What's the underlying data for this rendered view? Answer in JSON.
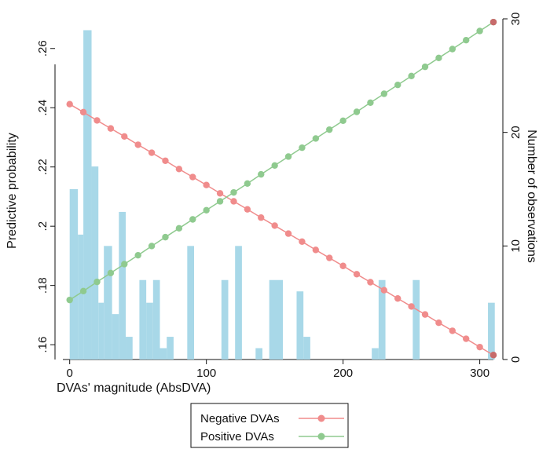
{
  "chart_data": {
    "type": "line",
    "title": "",
    "xlabel": "DVAs' magnitude (AbsDVA)",
    "ylabel": "Predictive probability",
    "y2label": "Number of observations",
    "xlim": [
      -5,
      310
    ],
    "ylim": [
      0.155,
      0.27
    ],
    "y2lim": [
      0,
      30
    ],
    "x_ticks": [
      0,
      100,
      200,
      300
    ],
    "y_ticks": [
      0.16,
      0.18,
      0.2,
      0.22,
      0.24,
      0.26
    ],
    "y_tick_labels": [
      ".16",
      ".18",
      ".2",
      ".22",
      ".24",
      ".26"
    ],
    "y2_ticks": [
      0,
      10,
      20,
      30
    ],
    "grid": false,
    "legend_position": "bottom",
    "series": [
      {
        "name": "Negative DVAs",
        "color": "#f08c8c",
        "x": [
          0,
          10,
          20,
          30,
          40,
          50,
          60,
          70,
          80,
          90,
          100,
          110,
          120,
          130,
          140,
          150,
          160,
          170,
          180,
          190,
          200,
          210,
          220,
          230,
          240,
          250,
          260,
          270,
          280,
          290,
          300,
          310
        ],
        "y": [
          0.2412,
          0.2385,
          0.2357,
          0.233,
          0.2303,
          0.2275,
          0.2248,
          0.2221,
          0.2193,
          0.2166,
          0.2139,
          0.2111,
          0.2084,
          0.2057,
          0.2029,
          0.2002,
          0.1975,
          0.1948,
          0.192,
          0.1893,
          0.1866,
          0.1838,
          0.1811,
          0.1784,
          0.1756,
          0.1729,
          0.1702,
          0.1674,
          0.1647,
          0.162,
          0.1592,
          0.1565
        ]
      },
      {
        "name": "Positive DVAs",
        "color": "#8fca8f",
        "x": [
          0,
          10,
          20,
          30,
          40,
          50,
          60,
          70,
          80,
          90,
          100,
          110,
          120,
          130,
          140,
          150,
          160,
          170,
          180,
          190,
          200,
          210,
          220,
          230,
          240,
          250,
          260,
          270,
          280,
          290,
          300,
          310
        ],
        "y": [
          0.1751,
          0.1781,
          0.1812,
          0.1842,
          0.1872,
          0.1902,
          0.1933,
          0.1963,
          0.1993,
          0.2023,
          0.2054,
          0.2084,
          0.2114,
          0.2144,
          0.2175,
          0.2205,
          0.2235,
          0.2265,
          0.2296,
          0.2326,
          0.2356,
          0.2386,
          0.2417,
          0.2447,
          0.2477,
          0.2507,
          0.2538,
          0.2568,
          0.2598,
          0.2628,
          0.2659,
          0.2689
        ]
      }
    ],
    "histogram": {
      "axis": "secondary",
      "color": "#a8d8e8",
      "bins": [
        {
          "x0": 0,
          "x1": 6,
          "count": 15
        },
        {
          "x0": 6,
          "x1": 10,
          "count": 11
        },
        {
          "x0": 10,
          "x1": 16,
          "count": 29
        },
        {
          "x0": 16,
          "x1": 21,
          "count": 17
        },
        {
          "x0": 21,
          "x1": 25,
          "count": 5
        },
        {
          "x0": 25,
          "x1": 31,
          "count": 10
        },
        {
          "x0": 31,
          "x1": 36,
          "count": 4
        },
        {
          "x0": 36,
          "x1": 41,
          "count": 13
        },
        {
          "x0": 41,
          "x1": 46,
          "count": 2
        },
        {
          "x0": 51,
          "x1": 56,
          "count": 7
        },
        {
          "x0": 56,
          "x1": 61,
          "count": 5
        },
        {
          "x0": 61,
          "x1": 66,
          "count": 7
        },
        {
          "x0": 66,
          "x1": 71,
          "count": 1
        },
        {
          "x0": 71,
          "x1": 76,
          "count": 2
        },
        {
          "x0": 86,
          "x1": 91,
          "count": 10
        },
        {
          "x0": 111,
          "x1": 116,
          "count": 7
        },
        {
          "x0": 121,
          "x1": 126,
          "count": 10
        },
        {
          "x0": 136,
          "x1": 141,
          "count": 1
        },
        {
          "x0": 146,
          "x1": 156,
          "count": 7
        },
        {
          "x0": 166,
          "x1": 171,
          "count": 6
        },
        {
          "x0": 171,
          "x1": 176,
          "count": 2
        },
        {
          "x0": 221,
          "x1": 226,
          "count": 1
        },
        {
          "x0": 226,
          "x1": 231,
          "count": 7
        },
        {
          "x0": 251,
          "x1": 256,
          "count": 7
        },
        {
          "x0": 306,
          "x1": 311,
          "count": 5
        }
      ]
    }
  }
}
